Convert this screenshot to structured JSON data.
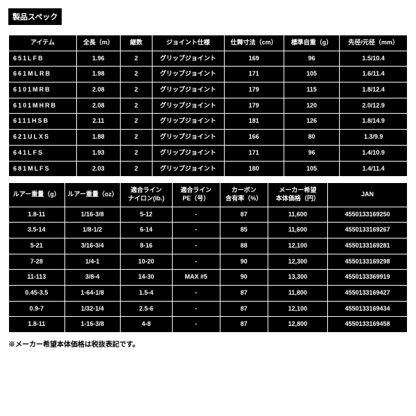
{
  "title": "製品スペック",
  "table1": {
    "headers": [
      "アイテム",
      "全長（m）",
      "継数",
      "ジョイント仕様",
      "仕舞寸法（cm）",
      "標準自重（g）",
      "先径/元径（mm）"
    ],
    "rows": [
      [
        "651LFB",
        "1.96",
        "2",
        "グリップジョイント",
        "169",
        "96",
        "1.5/10.4"
      ],
      [
        "661MLRB",
        "1.98",
        "2",
        "グリップジョイント",
        "171",
        "105",
        "1.6/11.4"
      ],
      [
        "6101MRB",
        "2.08",
        "2",
        "グリップジョイント",
        "179",
        "115",
        "1.8/12.4"
      ],
      [
        "6101MHRB",
        "2.08",
        "2",
        "グリップジョイント",
        "179",
        "120",
        "2.0/12.9"
      ],
      [
        "6111HSB",
        "2.11",
        "2",
        "グリップジョイント",
        "181",
        "126",
        "1.8/14.9"
      ],
      [
        "621ULXS",
        "1.88",
        "2",
        "グリップジョイント",
        "166",
        "80",
        "1.3/9.9"
      ],
      [
        "641LFS",
        "1.93",
        "2",
        "グリップジョイント",
        "171",
        "96",
        "1.4/10.9"
      ],
      [
        "681MLFS",
        "2.03",
        "2",
        "グリップジョイント",
        "180",
        "105",
        "1.4/11.4"
      ]
    ]
  },
  "table2": {
    "headers": [
      "ルアー重量（g）",
      "ルアー重量（oz）",
      "適合ライン\nナイロン(lb.)",
      "適合ライン\nPE（号）",
      "カーボン\n含有率（%）",
      "メーカー希望\n本体価格（円）",
      "JAN"
    ],
    "rows": [
      [
        "1.8-11",
        "1/16-3/8",
        "5-12",
        "-",
        "87",
        "11,600",
        "4550133169250"
      ],
      [
        "3.5-14",
        "1/8-1/2",
        "6-14",
        "-",
        "85",
        "11,600",
        "4550133169267"
      ],
      [
        "5-21",
        "3/16-3/4",
        "8-16",
        "-",
        "88",
        "12,100",
        "4550133169281"
      ],
      [
        "7-28",
        "1/4-1",
        "10-20",
        "-",
        "90",
        "12,300",
        "4550133169298"
      ],
      [
        "11-113",
        "3/8-4",
        "14-30",
        "MAX #5",
        "90",
        "13,300",
        "4550133369919"
      ],
      [
        "0.45-3.5",
        "1-64-1/8",
        "1.5-4",
        "-",
        "87",
        "11,800",
        "4550133169427"
      ],
      [
        "0.9-7",
        "1/32-1/4",
        "2.5-6",
        "-",
        "87",
        "12,100",
        "4550133169434"
      ],
      [
        "1.8-11",
        "1-16-3/8",
        "4-8",
        "-",
        "87",
        "12,800",
        "4550133169458"
      ]
    ]
  },
  "note": "※メーカー希望本体価格は税抜表記です。",
  "colors": {
    "bg": "#ffffff",
    "table_bg": "#000000",
    "border": "#ffffff",
    "text": "#ffffff"
  }
}
